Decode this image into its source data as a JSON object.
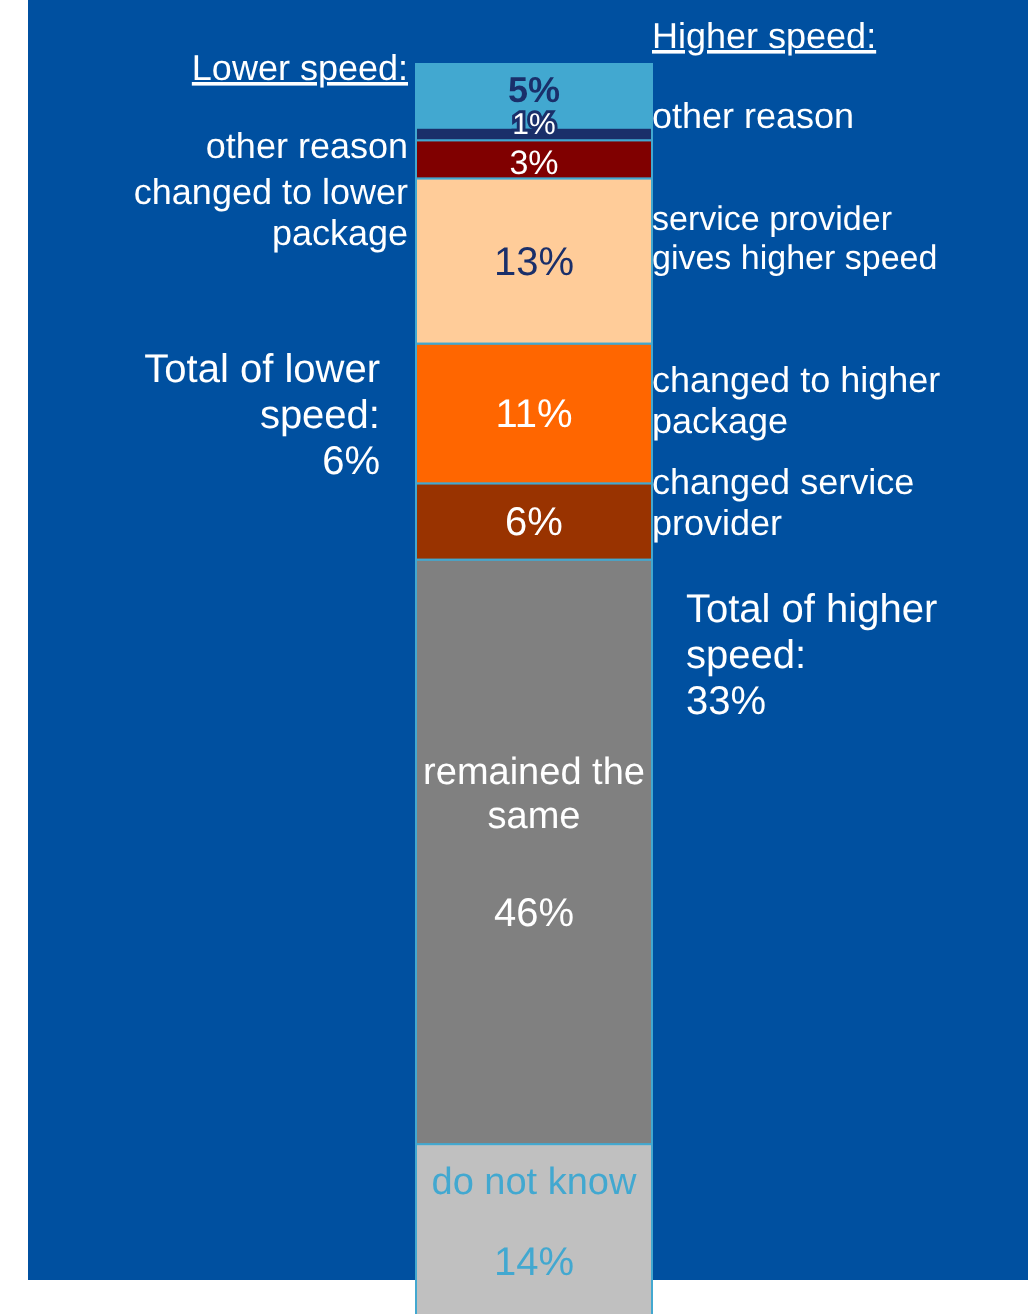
{
  "chart_data": {
    "type": "bar",
    "stacked": true,
    "categories": [
      null
    ],
    "series": [
      {
        "color": "#c0c0c0",
        "values": [
          14
        ],
        "value_labels": [
          "14%"
        ]
      },
      {
        "color": "#808080",
        "values": [
          46
        ],
        "value_labels": [
          "46%"
        ]
      },
      {
        "color": "#993300",
        "values": [
          6
        ],
        "value_labels": [
          "6%"
        ]
      },
      {
        "color": "#ff6600",
        "values": [
          11
        ],
        "value_labels": [
          "11%"
        ]
      },
      {
        "color": "#ffcc99",
        "values": [
          13
        ],
        "value_labels": [
          "13%"
        ]
      },
      {
        "color": "#800000",
        "values": [
          3
        ],
        "value_labels": [
          "3%"
        ]
      },
      {
        "color": "#1a2f6a",
        "values": [
          1
        ],
        "value_labels": [
          "1%"
        ]
      },
      {
        "color": "#42a8d0",
        "values": [
          5
        ],
        "value_labels": [
          "5%"
        ]
      }
    ],
    "annotations": [
      "Lower speed:",
      "Higher speed:",
      "other reason",
      "changed to lower\npackage",
      "Total of lower\nspeed:\n6%",
      "other reason",
      "service provider\ngives higher speed",
      "changed to higher\npackage",
      "changed service\nprovider",
      "Total of higher\nspeed:\n33%",
      "remained the\nsame",
      "do not know"
    ]
  }
}
